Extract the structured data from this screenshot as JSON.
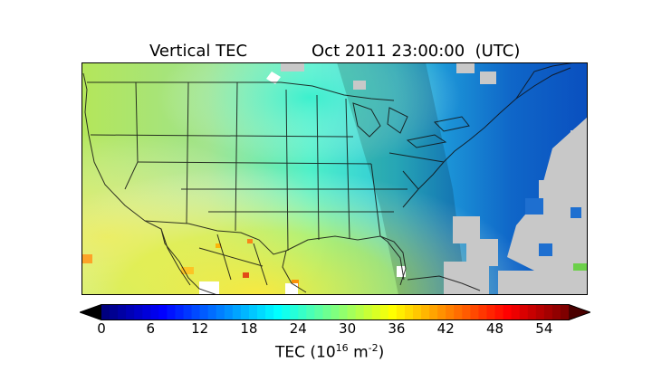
{
  "title": {
    "left": "Vertical TEC",
    "right": "Oct 2011 23:00:00  (UTC)"
  },
  "colorbar": {
    "ticks": [
      "0",
      "6",
      "12",
      "18",
      "24",
      "30",
      "36",
      "42",
      "48",
      "54"
    ],
    "min": 0,
    "max": 57,
    "label_prefix": "TEC (10",
    "label_exp1": "16",
    "label_mid": " m",
    "label_exp2": "-2",
    "label_suffix": ")",
    "colors": [
      "#00007f",
      "#0000ff",
      "#007fff",
      "#00ffff",
      "#7fff7f",
      "#ffff00",
      "#ff7f00",
      "#ff0000",
      "#7f0000"
    ]
  },
  "map": {
    "no_data_color": "#c8c8c8",
    "terminator_shading": "dark band from northwest to southeast across the central US"
  }
}
